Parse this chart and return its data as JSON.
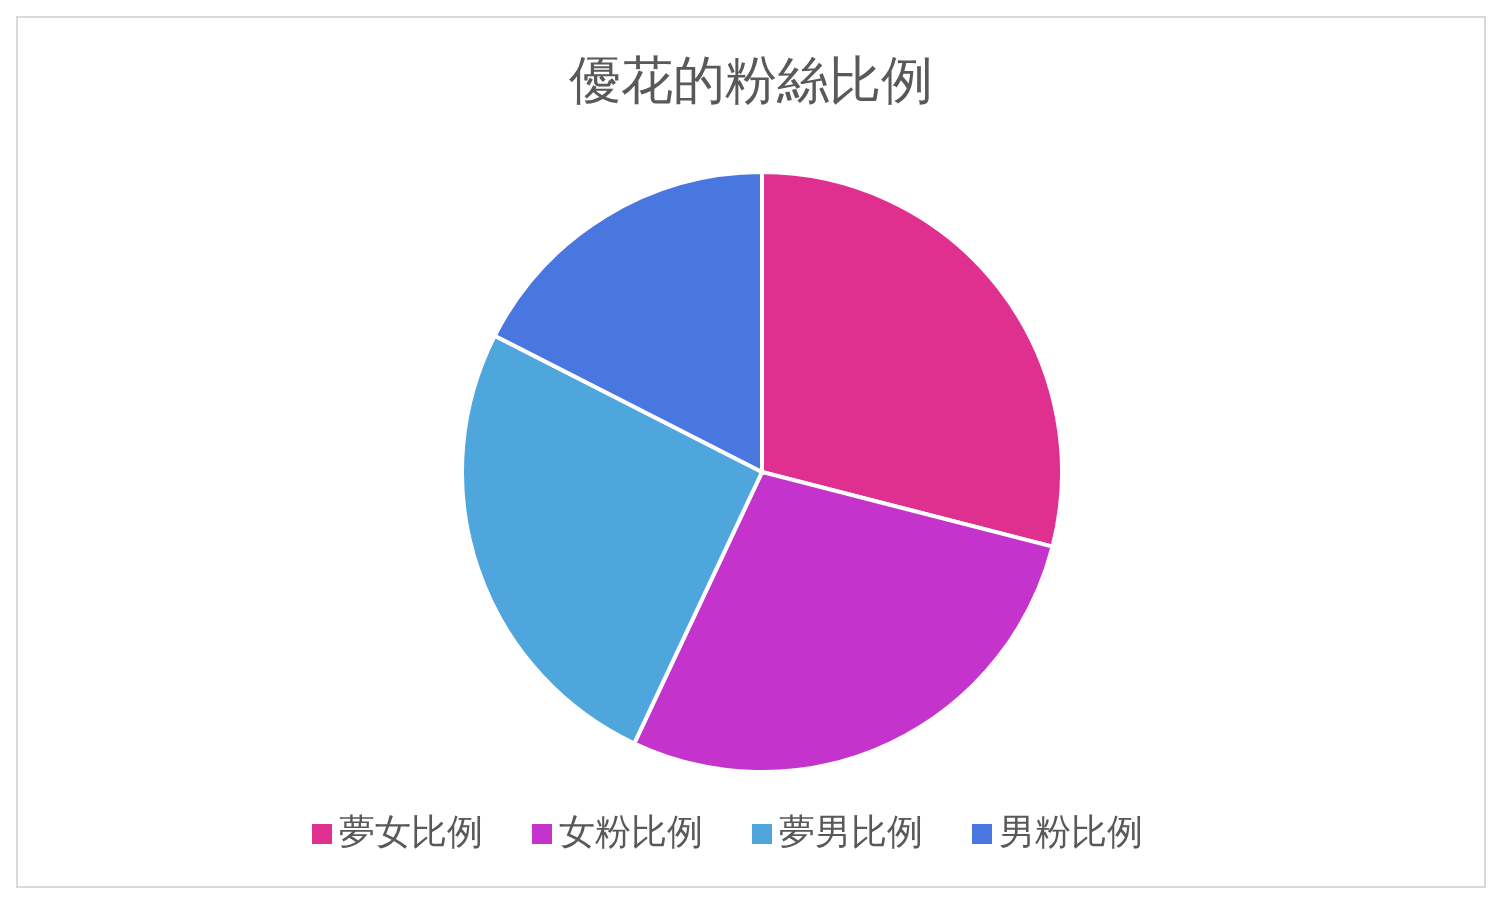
{
  "chart_data": {
    "type": "pie",
    "title": "優花的粉絲比例",
    "categories": [
      "夢女比例",
      "女粉比例",
      "夢男比例",
      "男粉比例"
    ],
    "values": [
      29,
      28,
      25.5,
      17.5
    ],
    "colors": [
      "#e0308f",
      "#c433cc",
      "#4fa6dc",
      "#4a76e0"
    ],
    "legend": "bottom"
  }
}
